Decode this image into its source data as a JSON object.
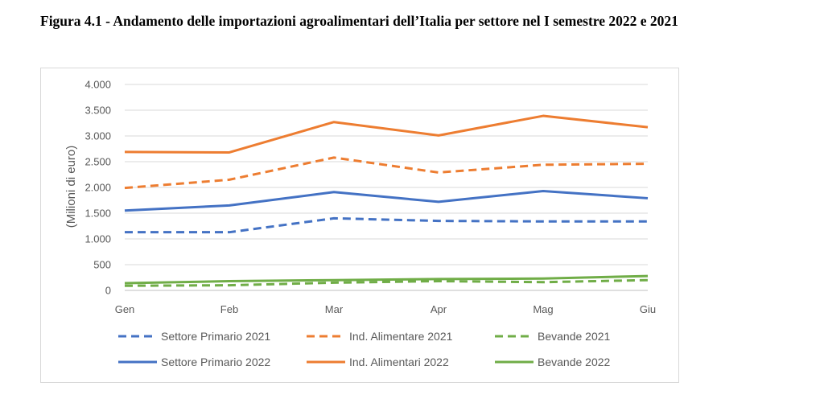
{
  "figure": {
    "title": "Figura 4.1 - Andamento delle importazioni agroalimentari dell’Italia per settore nel I semestre 2022 e 2021"
  },
  "chart_data": {
    "type": "line",
    "title": "",
    "xlabel": "",
    "ylabel": "(Milioni di euro)",
    "categories": [
      "Gen",
      "Feb",
      "Mar",
      "Apr",
      "Mag",
      "Giu"
    ],
    "ylim": [
      0,
      4000
    ],
    "yticks": [
      0,
      500,
      1000,
      1500,
      2000,
      2500,
      3000,
      3500,
      4000
    ],
    "ytick_labels": [
      "0",
      "500",
      "1.000",
      "1.500",
      "2.000",
      "2.500",
      "3.000",
      "3.500",
      "4.000"
    ],
    "grid": true,
    "legend_position": "bottom",
    "series": [
      {
        "name": "Settore Primario 2021",
        "color": "#4472c4",
        "style": "dashed",
        "values": [
          1130,
          1130,
          1400,
          1350,
          1340,
          1340
        ]
      },
      {
        "name": "Ind. Alimentare 2021",
        "color": "#ed7d31",
        "style": "dashed",
        "values": [
          1990,
          2150,
          2580,
          2290,
          2440,
          2460
        ]
      },
      {
        "name": "Bevande 2021",
        "color": "#70ad47",
        "style": "dashed",
        "values": [
          90,
          100,
          150,
          180,
          160,
          200
        ]
      },
      {
        "name": "Settore Primario 2022",
        "color": "#4472c4",
        "style": "solid",
        "values": [
          1550,
          1650,
          1910,
          1720,
          1930,
          1790
        ]
      },
      {
        "name": "Ind. Alimentari 2022",
        "color": "#ed7d31",
        "style": "solid",
        "values": [
          2690,
          2680,
          3270,
          3010,
          3390,
          3170
        ]
      },
      {
        "name": "Bevande 2022",
        "color": "#70ad47",
        "style": "solid",
        "values": [
          140,
          180,
          200,
          220,
          230,
          280
        ]
      }
    ]
  }
}
